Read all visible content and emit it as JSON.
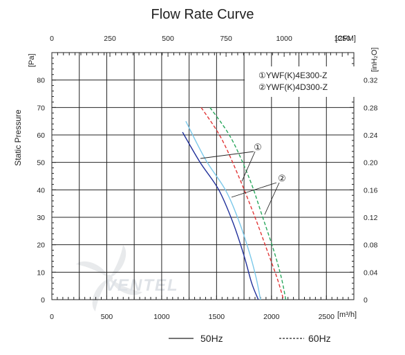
{
  "chart_data": {
    "type": "line",
    "title": "Flow Rate Curve",
    "ylabel": "Static Pressure",
    "x_bottom": {
      "unit": "[m³/h]",
      "range": [
        0,
        2750
      ],
      "ticks": [
        0,
        500,
        1000,
        1500,
        2000,
        2500
      ]
    },
    "x_top": {
      "unit": "[CFM]",
      "range": [
        0,
        1300
      ],
      "ticks": [
        0,
        250,
        500,
        750,
        1000,
        1250
      ]
    },
    "y_left": {
      "unit": "[Pa]",
      "range": [
        0,
        90
      ],
      "ticks": [
        0,
        10,
        20,
        30,
        40,
        50,
        60,
        70,
        80
      ]
    },
    "y_right": {
      "unit": "[inH₂O]",
      "range": [
        0,
        0.36
      ],
      "ticks": [
        "0",
        "0.04",
        "0.08",
        "0.12",
        "0.16",
        "0.20",
        "0.24",
        "0.28",
        "0.32"
      ]
    },
    "grid": true,
    "legend_models": [
      "①YWF(K)4E300-Z",
      "②YWF(K)4D300-Z"
    ],
    "callouts": [
      "①",
      "②"
    ],
    "line_styles": [
      {
        "label": "50Hz",
        "dash": "solid"
      },
      {
        "label": "60Hz",
        "dash": "dashed"
      }
    ],
    "series": [
      {
        "model": "①",
        "frequency": "50Hz",
        "color": "#1f2f9a",
        "x": [
          1190,
          1350,
          1520,
          1650,
          1750,
          1820,
          1880
        ],
        "y": [
          61,
          50,
          40,
          28,
          16,
          6,
          0
        ]
      },
      {
        "model": "②",
        "frequency": "50Hz",
        "color": "#7ac8ea",
        "x": [
          1220,
          1400,
          1580,
          1700,
          1800,
          1860,
          1900
        ],
        "y": [
          65,
          51,
          40,
          29,
          17,
          8,
          0
        ]
      },
      {
        "model": "①",
        "frequency": "60Hz",
        "color": "#e23636",
        "x": [
          1360,
          1540,
          1700,
          1850,
          1960,
          2050,
          2110
        ],
        "y": [
          70,
          59,
          45,
          30,
          18,
          8,
          0
        ]
      },
      {
        "model": "②",
        "frequency": "60Hz",
        "color": "#26a65a",
        "x": [
          1440,
          1630,
          1800,
          1920,
          2020,
          2090,
          2130
        ],
        "y": [
          70,
          59,
          44,
          30,
          18,
          8,
          0
        ]
      }
    ]
  },
  "watermark": {
    "brand": "VENTEL"
  }
}
